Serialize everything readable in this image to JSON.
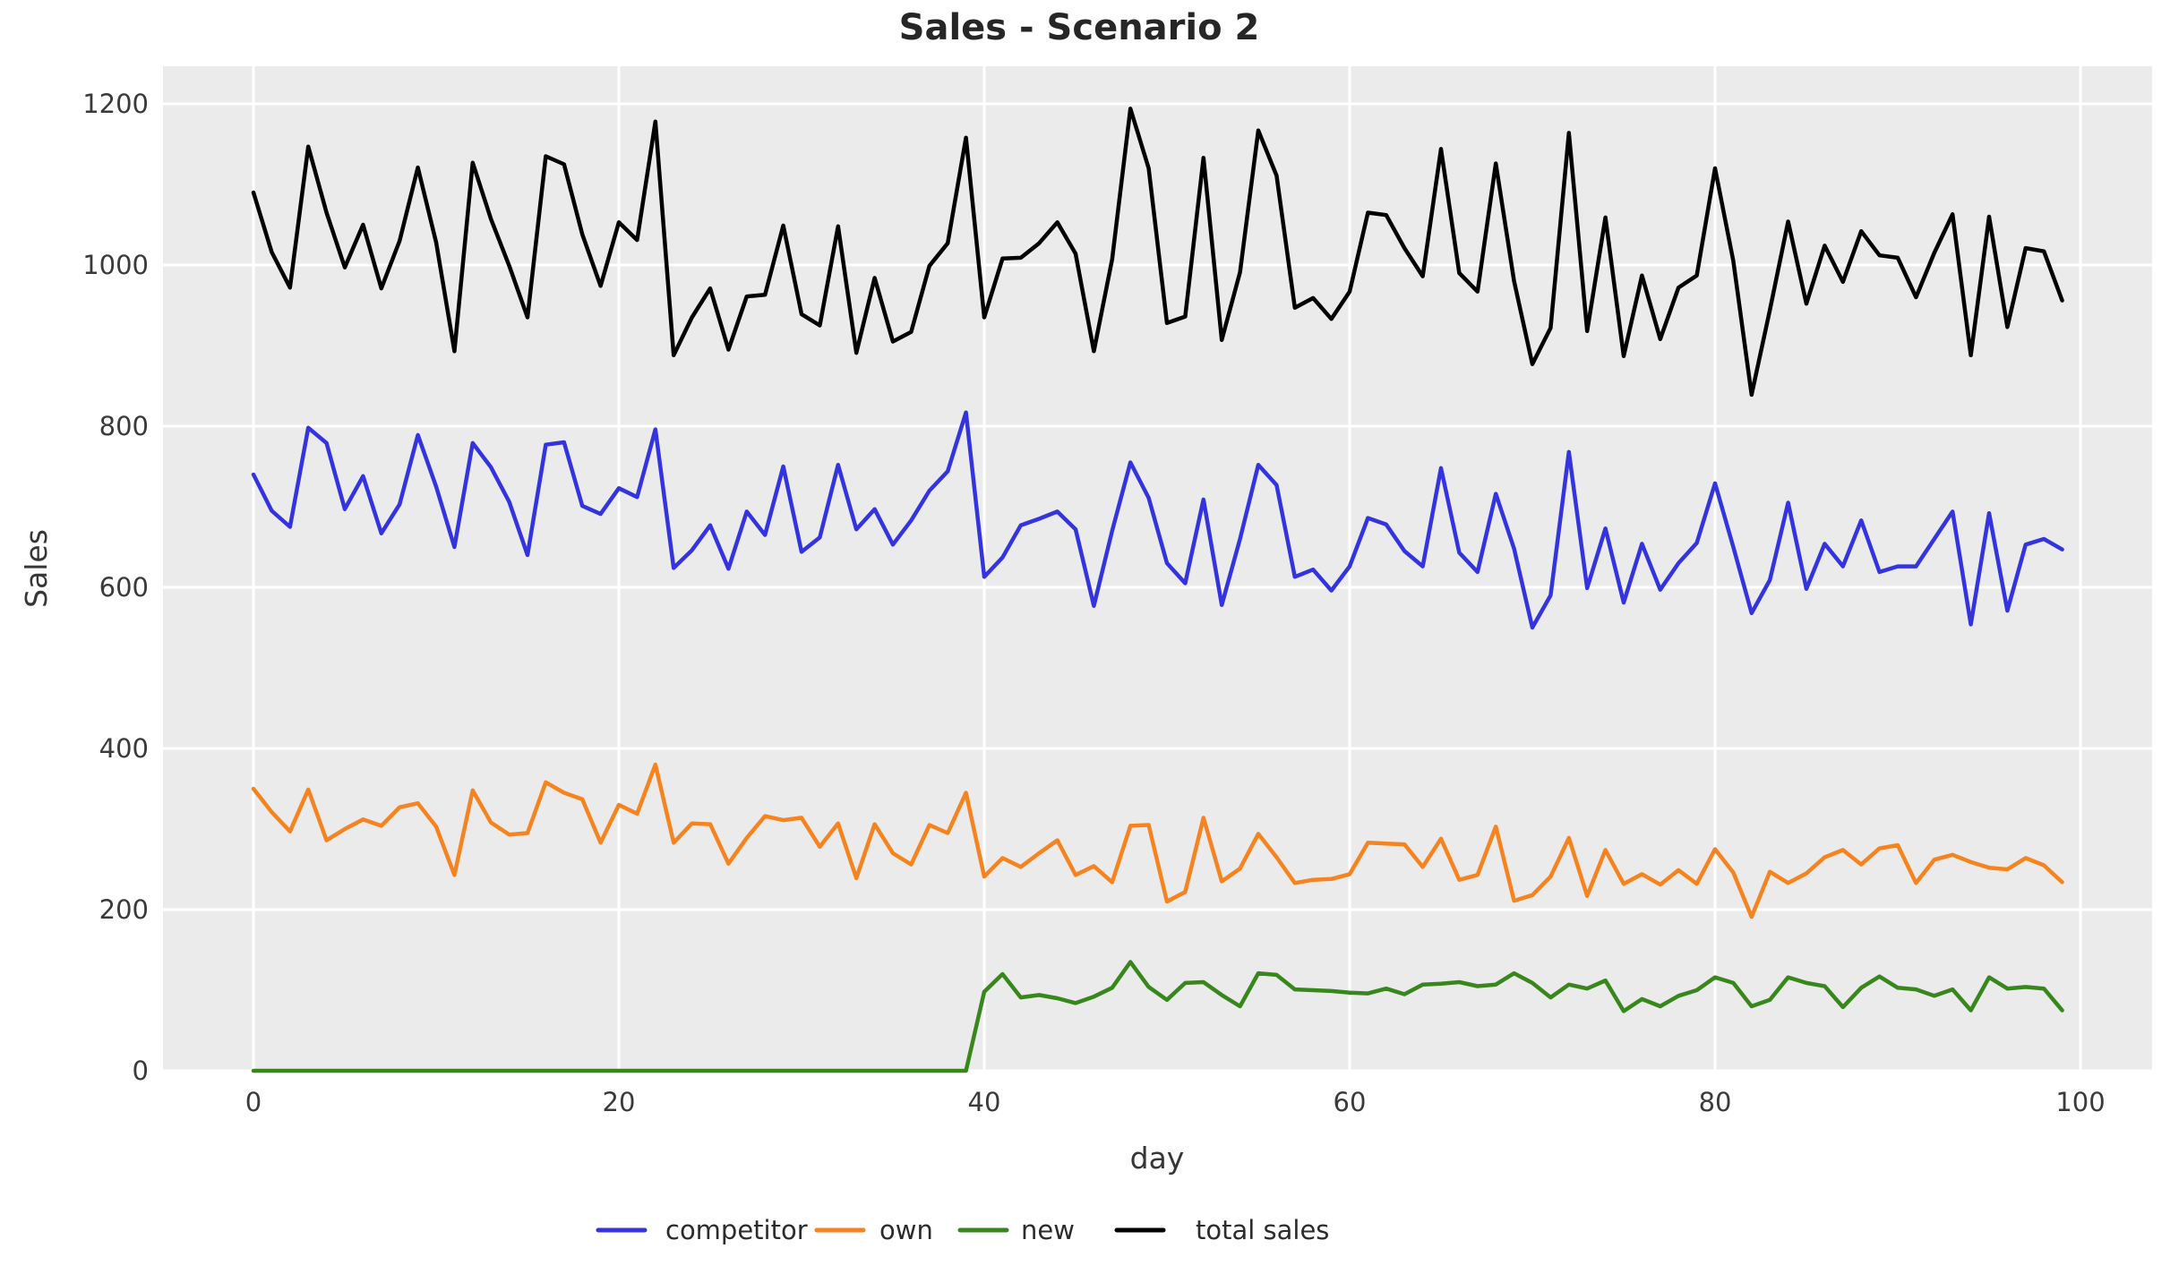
{
  "title": "Sales - Scenario 2",
  "axes": {
    "xlabel": "day",
    "ylabel": "Sales",
    "x_ticks": [
      0,
      20,
      40,
      60,
      80,
      100
    ],
    "y_ticks": [
      0,
      200,
      400,
      600,
      800,
      1000,
      1200
    ],
    "xlim": [
      -4.95,
      103.92
    ],
    "ylim": [
      0,
      1246.7
    ],
    "grid": true,
    "plot_background": "#ebebeb",
    "grid_color": "#ffffff"
  },
  "legend": {
    "position": "bottom-center",
    "entries": [
      {
        "label": "competitor",
        "color": "#3333e0"
      },
      {
        "label": "own",
        "color": "#f5831f"
      },
      {
        "label": "new",
        "color": "#38871d"
      },
      {
        "label": "total sales",
        "color": "#000000"
      }
    ]
  },
  "chart_data": {
    "type": "line",
    "title": "Sales - Scenario 2",
    "xlabel": "day",
    "ylabel": "Sales",
    "xlim": [
      -4.95,
      103.92
    ],
    "ylim": [
      0,
      1246.7
    ],
    "grid": true,
    "legend_position": "bottom",
    "x": [
      0,
      1,
      2,
      3,
      4,
      5,
      6,
      7,
      8,
      9,
      10,
      11,
      12,
      13,
      14,
      15,
      16,
      17,
      18,
      19,
      20,
      21,
      22,
      23,
      24,
      25,
      26,
      27,
      28,
      29,
      30,
      31,
      32,
      33,
      34,
      35,
      36,
      37,
      38,
      39,
      40,
      41,
      42,
      43,
      44,
      45,
      46,
      47,
      48,
      49,
      50,
      51,
      52,
      53,
      54,
      55,
      56,
      57,
      58,
      59,
      60,
      61,
      62,
      63,
      64,
      65,
      66,
      67,
      68,
      69,
      70,
      71,
      72,
      73,
      74,
      75,
      76,
      77,
      78,
      79,
      80,
      81,
      82,
      83,
      84,
      85,
      86,
      87,
      88,
      89,
      90,
      91,
      92,
      93,
      94,
      95,
      96,
      97,
      98,
      99
    ],
    "series": [
      {
        "name": "competitor",
        "color": "#3333e0",
        "values": [
          740,
          695,
          675,
          798,
          779,
          697,
          738,
          667,
          703,
          789,
          725,
          650,
          779,
          749,
          706,
          640,
          777,
          780,
          701,
          691,
          723,
          712,
          796,
          624,
          646,
          677,
          623,
          694,
          665,
          750,
          644,
          662,
          752,
          672,
          697,
          653,
          683,
          720,
          744,
          817,
          613,
          637,
          677,
          685,
          694,
          672,
          577,
          670,
          755,
          711,
          630,
          605,
          709,
          578,
          660,
          752,
          727,
          613,
          622,
          596,
          626,
          686,
          678,
          645,
          626,
          748,
          643,
          619,
          716,
          648,
          550,
          590,
          768,
          599,
          673,
          581,
          654,
          597,
          630,
          655,
          729,
          650,
          568,
          609,
          705,
          598,
          654,
          626,
          683,
          619,
          626,
          626,
          660,
          694,
          554,
          692,
          571,
          653,
          660,
          647
        ]
      },
      {
        "name": "own",
        "color": "#f5831f",
        "values": [
          350,
          321,
          297,
          349,
          286,
          300,
          312,
          304,
          327,
          332,
          303,
          243,
          348,
          308,
          293,
          295,
          358,
          345,
          337,
          283,
          330,
          319,
          380,
          283,
          307,
          306,
          257,
          289,
          316,
          311,
          314,
          278,
          307,
          239,
          306,
          270,
          256,
          305,
          295,
          345,
          241,
          264,
          253,
          270,
          286,
          243,
          254,
          234,
          304,
          305,
          210,
          222,
          314,
          235,
          251,
          294,
          265,
          233,
          237,
          238,
          244,
          283,
          282,
          281,
          253,
          288,
          237,
          243,
          303,
          211,
          218,
          241,
          289,
          217,
          274,
          232,
          244,
          231,
          249,
          232,
          275,
          246,
          191,
          247,
          233,
          245,
          265,
          274,
          256,
          276,
          280,
          233,
          262,
          268,
          259,
          252,
          250,
          264,
          255,
          234
        ]
      },
      {
        "name": "new",
        "color": "#38871d",
        "values": [
          0,
          0,
          0,
          0,
          0,
          0,
          0,
          0,
          0,
          0,
          0,
          0,
          0,
          0,
          0,
          0,
          0,
          0,
          0,
          0,
          0,
          0,
          0,
          0,
          0,
          0,
          0,
          0,
          0,
          0,
          0,
          0,
          0,
          0,
          0,
          0,
          0,
          0,
          0,
          0,
          98,
          120,
          91,
          94,
          90,
          84,
          92,
          103,
          135,
          104,
          88,
          109,
          110,
          94,
          80,
          121,
          119,
          101,
          100,
          99,
          97,
          96,
          102,
          95,
          107,
          108,
          110,
          105,
          107,
          121,
          109,
          91,
          107,
          102,
          112,
          74,
          89,
          80,
          93,
          100,
          116,
          109,
          80,
          88,
          116,
          109,
          105,
          79,
          103,
          117,
          103,
          101,
          93,
          101,
          75,
          116,
          102,
          104,
          102,
          75
        ]
      },
      {
        "name": "total sales",
        "color": "#000000",
        "values": [
          1090,
          1016,
          972,
          1147,
          1065,
          997,
          1050,
          971,
          1030,
          1121,
          1028,
          893,
          1127,
          1057,
          999,
          935,
          1135,
          1125,
          1038,
          974,
          1053,
          1031,
          1178,
          888,
          935,
          971,
          895,
          961,
          963,
          1049,
          939,
          925,
          1048,
          891,
          984,
          905,
          917,
          999,
          1027,
          1158,
          935,
          1008,
          1009,
          1027,
          1053,
          1014,
          893,
          1007,
          1194,
          1120,
          928,
          936,
          1133,
          907,
          991,
          1167,
          1111,
          947,
          959,
          933,
          967,
          1065,
          1062,
          1021,
          986,
          1144,
          990,
          967,
          1126,
          980,
          877,
          922,
          1164,
          918,
          1059,
          887,
          987,
          908,
          972,
          987,
          1120,
          1005,
          839,
          944,
          1054,
          952,
          1024,
          979,
          1042,
          1012,
          1009,
          960,
          1015,
          1063,
          888,
          1060,
          923,
          1021,
          1017,
          956
        ]
      }
    ]
  }
}
